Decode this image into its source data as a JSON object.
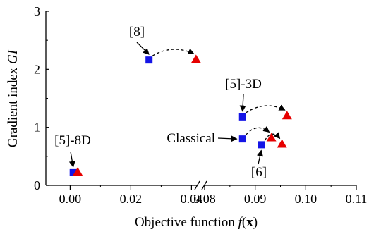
{
  "chart_data": {
    "type": "scatter",
    "xlabel": {
      "prefix": "Objective function ",
      "f": "f",
      "x": "x"
    },
    "ylabel": {
      "prefix": "Gradient index ",
      "italic": "GI"
    },
    "ylim": [
      0,
      3
    ],
    "axis_break": {
      "left_range": [
        -0.008,
        0.042
      ],
      "right_range": [
        0.08,
        0.11
      ]
    },
    "x_ticks": [
      "0.00",
      "0.02",
      "0.04",
      "0.08",
      "0.09",
      "0.10",
      "0.11"
    ],
    "y_ticks": [
      "0",
      "1",
      "2",
      "3"
    ],
    "grid": false,
    "colors": {
      "square": "#1515e6",
      "triangle": "#e60000"
    },
    "series": [
      {
        "marker": "square",
        "points": [
          [
            0.001,
            0.22
          ],
          [
            0.026,
            2.16
          ],
          [
            0.0875,
            1.18
          ],
          [
            0.0875,
            0.8
          ],
          [
            0.0912,
            0.7
          ]
        ]
      },
      {
        "marker": "triangle",
        "points": [
          [
            0.0025,
            0.23
          ],
          [
            0.0415,
            2.17
          ],
          [
            0.0963,
            1.2
          ],
          [
            0.0932,
            0.82
          ],
          [
            0.0953,
            0.71
          ]
        ]
      }
    ],
    "annotations": [
      {
        "label": "[5]-8D"
      },
      {
        "label": "[8]"
      },
      {
        "label": "[5]-3D"
      },
      {
        "label": "Classical"
      },
      {
        "label": "[6]"
      }
    ]
  }
}
